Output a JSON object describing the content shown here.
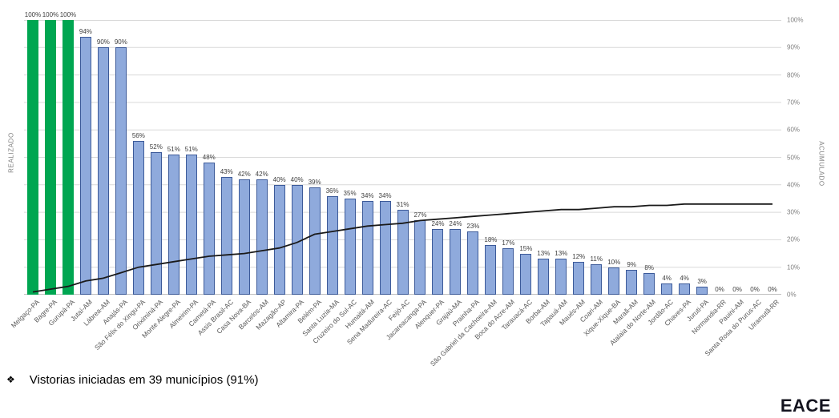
{
  "chart_data": {
    "type": "bar",
    "title": "",
    "left_axis_label": "REALIZADO",
    "right_axis_label": "ACUMULADO",
    "right_axis_ticks": [
      "0%",
      "10%",
      "20%",
      "30%",
      "40%",
      "50%",
      "60%",
      "70%",
      "80%",
      "90%",
      "100%"
    ],
    "ylim": [
      0,
      100
    ],
    "grid": true,
    "categories": [
      "Melgaço-PA",
      "Bagre-PA",
      "Gurupá-PA",
      "Jutaí-AM",
      "Lábrea-AM",
      "Anajás-PA",
      "São Félix do Xingu-PA",
      "Oriximiná-PA",
      "Monte Alegre-PA",
      "Almeirim-PA",
      "Cametá-PA",
      "Assis Brasil-AC",
      "Casa Nova-BA",
      "Barcelos-AM",
      "Mazagão-AP",
      "Altamira-PA",
      "Belém-PA",
      "Santa Luzia-MA",
      "Cruzeiro do Sul-AC",
      "Humaitá-AM",
      "Sena Madureira-AC",
      "Feijó-AC",
      "Jacareacanga-PA",
      "Alenquer-PA",
      "Grajaú-MA",
      "Prainha-PA",
      "São Gabriel da Cachoeira-AM",
      "Boca do Acre-AM",
      "Tarauacá-AC",
      "Borba-AM",
      "Tapauá-AM",
      "Maués-AM",
      "Coari-AM",
      "Xique-Xique-BA",
      "Maraã-AM",
      "Atalaia do Norte-AM",
      "Jordão-AC",
      "Chaves-PA",
      "Juruti-PA",
      "Normandia-RR",
      "Pauini-AM",
      "Santa Rosa do Purus-AC",
      "Uiramutã-RR"
    ],
    "series": [
      {
        "name": "REALIZADO",
        "type": "bar",
        "values": [
          100,
          100,
          100,
          94,
          90,
          90,
          56,
          52,
          51,
          51,
          48,
          43,
          42,
          42,
          40,
          40,
          39,
          36,
          35,
          34,
          34,
          31,
          27,
          24,
          24,
          23,
          18,
          17,
          15,
          13,
          13,
          12,
          11,
          10,
          9,
          8,
          4,
          4,
          3,
          0,
          0,
          0,
          0
        ]
      },
      {
        "name": "ACUMULADO",
        "type": "line",
        "values": [
          1,
          2,
          3,
          5,
          6,
          8,
          10,
          11,
          12,
          13,
          14,
          14.5,
          15,
          16,
          17,
          19,
          22,
          23,
          24,
          25,
          25.5,
          26,
          27,
          27.5,
          28,
          28.5,
          29,
          29.5,
          30,
          30.5,
          31,
          31,
          31.5,
          32,
          32,
          32.5,
          32.5,
          33,
          33,
          33,
          33,
          33,
          33
        ]
      }
    ],
    "colors": {
      "highlight_bar": "#00A651",
      "highlight_count": 3,
      "bar_fill": "#8FAADC",
      "bar_border": "#3C5A99",
      "line": "#1a1a1a",
      "grid": "#D9D9D9",
      "axis": "#BFBFBF"
    }
  },
  "footer": {
    "bullet": "❖",
    "note": "Vistorias iniciadas em 39 municípios (91%)"
  },
  "logo": "EACE"
}
